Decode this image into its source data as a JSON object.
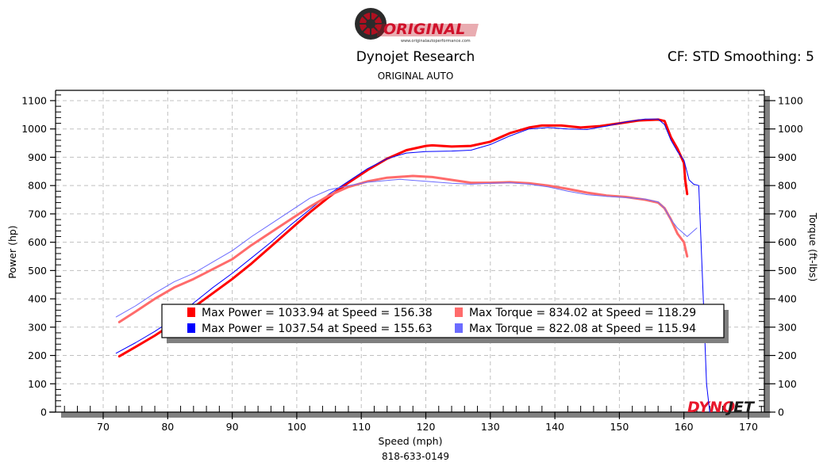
{
  "header": {
    "logo_text": "ORIGINAL",
    "logo_url_text": "www.originalautoperformance.com",
    "title": "Dynojet Research",
    "subtitle": "ORIGINAL AUTO",
    "cf_label": "CF: STD Smoothing: 5"
  },
  "footer": {
    "phone": "818-633-0149",
    "watermark_dyno": "DYNO",
    "watermark_jet": "JET"
  },
  "colors": {
    "power_run1": "#ff0000",
    "power_run2": "#0000ff",
    "torque_run1": "#ff6b6b",
    "torque_run2": "#6b6bff",
    "grid": "#c0c0c0",
    "shadow": "#808080"
  },
  "legend": [
    {
      "label": "Max Power = 1033.94 at Speed = 156.38",
      "color": "#ff0000"
    },
    {
      "label": "Max Power = 1037.54 at Speed = 155.63",
      "color": "#0000ff"
    },
    {
      "label": "Max Torque = 834.02 at Speed = 118.29",
      "color": "#ff6b6b"
    },
    {
      "label": "Max Torque = 822.08 at Speed = 115.94",
      "color": "#6b6bff"
    }
  ],
  "chart_data": {
    "type": "line",
    "title": "Dynojet Research",
    "subtitle": "ORIGINAL AUTO",
    "annotation": "CF: STD Smoothing: 5",
    "xlabel": "Speed (mph)",
    "ylabel": "Power (hp)",
    "y2label": "Torque (ft-lbs)",
    "xlim": [
      62.6,
      172.5
    ],
    "ylim": [
      0,
      1100
    ],
    "y2lim": [
      0,
      1100
    ],
    "xticks": [
      70,
      80,
      90,
      100,
      110,
      120,
      130,
      140,
      150,
      160,
      170
    ],
    "yticks": [
      0,
      100,
      200,
      300,
      400,
      500,
      600,
      700,
      800,
      900,
      1000,
      1100
    ],
    "y2ticks": [
      0,
      100,
      200,
      300,
      400,
      500,
      600,
      700,
      800,
      900,
      1000,
      1100
    ],
    "grid": true,
    "legend_position": "inside-lower-center",
    "series": [
      {
        "name": "Power Run 1",
        "axis": "left",
        "color": "#ff0000",
        "width": 3,
        "x": [
          72.5,
          75,
          78,
          81,
          84,
          87,
          90,
          93,
          96,
          99,
          102,
          105,
          108,
          111,
          114,
          117,
          120,
          121,
          124,
          127,
          130,
          133,
          136,
          138,
          141,
          144,
          147,
          150,
          153,
          156,
          157,
          158,
          159,
          160,
          160.2,
          160.5
        ],
        "y": [
          197,
          230,
          270,
          315,
          370,
          420,
          470,
          525,
          585,
          645,
          705,
          760,
          810,
          855,
          895,
          925,
          940,
          942,
          938,
          940,
          955,
          985,
          1005,
          1012,
          1012,
          1005,
          1010,
          1020,
          1030,
          1033,
          1028,
          970,
          930,
          880,
          820,
          770
        ]
      },
      {
        "name": "Power Run 2",
        "axis": "left",
        "color": "#0000ff",
        "width": 1,
        "x": [
          72,
          75,
          78,
          81,
          84,
          87,
          90,
          93,
          96,
          99,
          102,
          105,
          108,
          111,
          114,
          117,
          120,
          124,
          127,
          130,
          133,
          136,
          139,
          142,
          145,
          148,
          151,
          154,
          156,
          157,
          158,
          159,
          160,
          160.8,
          161.5,
          162.3,
          163,
          163.5,
          164
        ],
        "y": [
          208,
          245,
          285,
          330,
          385,
          440,
          490,
          545,
          600,
          660,
          715,
          770,
          815,
          860,
          895,
          915,
          920,
          922,
          925,
          945,
          975,
          1000,
          1005,
          1000,
          998,
          1010,
          1025,
          1035,
          1035,
          1015,
          960,
          920,
          890,
          820,
          805,
          800,
          400,
          100,
          0
        ]
      },
      {
        "name": "Torque Run 1",
        "axis": "right",
        "color": "#ff6b6b",
        "width": 3,
        "x": [
          72.5,
          75,
          78,
          81,
          84,
          87,
          90,
          93,
          96,
          99,
          102,
          105,
          108,
          111,
          114,
          118,
          121,
          124,
          127,
          130,
          133,
          136,
          139,
          142,
          145,
          148,
          151,
          154,
          156,
          157,
          158,
          159,
          160,
          160.5
        ],
        "y": [
          318,
          355,
          400,
          440,
          470,
          505,
          540,
          590,
          635,
          680,
          725,
          765,
          795,
          815,
          828,
          834,
          830,
          820,
          810,
          810,
          812,
          808,
          800,
          788,
          775,
          765,
          760,
          750,
          740,
          720,
          680,
          630,
          600,
          550
        ]
      },
      {
        "name": "Torque Run 2",
        "axis": "right",
        "color": "#6b6bff",
        "width": 1,
        "x": [
          72,
          75,
          78,
          81,
          84,
          87,
          90,
          93,
          96,
          99,
          102,
          105,
          108,
          111,
          116,
          120,
          124,
          127,
          130,
          133,
          136,
          139,
          142,
          145,
          148,
          151,
          154,
          156,
          157,
          158,
          159,
          160.5,
          162
        ],
        "y": [
          336,
          375,
          420,
          460,
          490,
          530,
          570,
          620,
          665,
          710,
          755,
          785,
          800,
          812,
          822,
          815,
          808,
          805,
          808,
          810,
          805,
          795,
          780,
          768,
          762,
          758,
          752,
          742,
          720,
          680,
          650,
          620,
          650
        ]
      }
    ]
  }
}
